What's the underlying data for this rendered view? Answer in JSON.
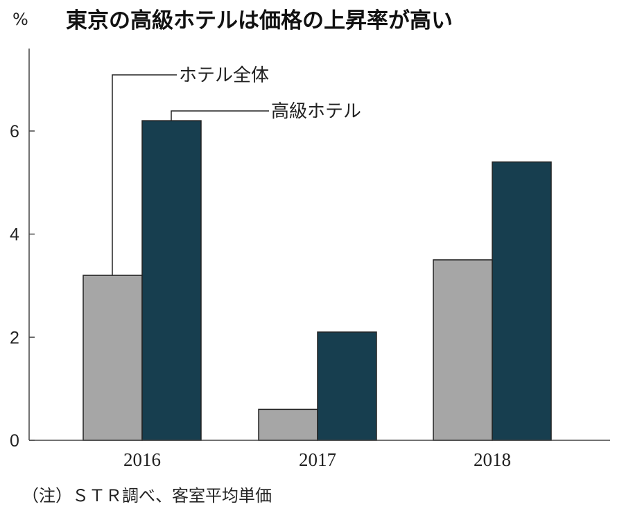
{
  "title": "東京の高級ホテルは価格の上昇率が高い",
  "unit": "%",
  "note": "（注）ＳＴＲ調べ、客室平均単価",
  "colors": {
    "series_all": "#a6a6a6",
    "series_luxury": "#173e4f",
    "bar_outline": "#222222",
    "axis": "#444444"
  },
  "chart_data": {
    "type": "bar",
    "categories": [
      "2016",
      "2017",
      "2018"
    ],
    "series": [
      {
        "name": "ホテル全体",
        "values": [
          3.2,
          0.6,
          3.5
        ]
      },
      {
        "name": "高級ホテル",
        "values": [
          6.2,
          2.1,
          5.4
        ]
      }
    ],
    "yticks": [
      "0",
      "2",
      "4",
      "6"
    ],
    "ylim": [
      0,
      7.6
    ],
    "ylabel": "%",
    "grid": false,
    "legend": "callout-top"
  }
}
